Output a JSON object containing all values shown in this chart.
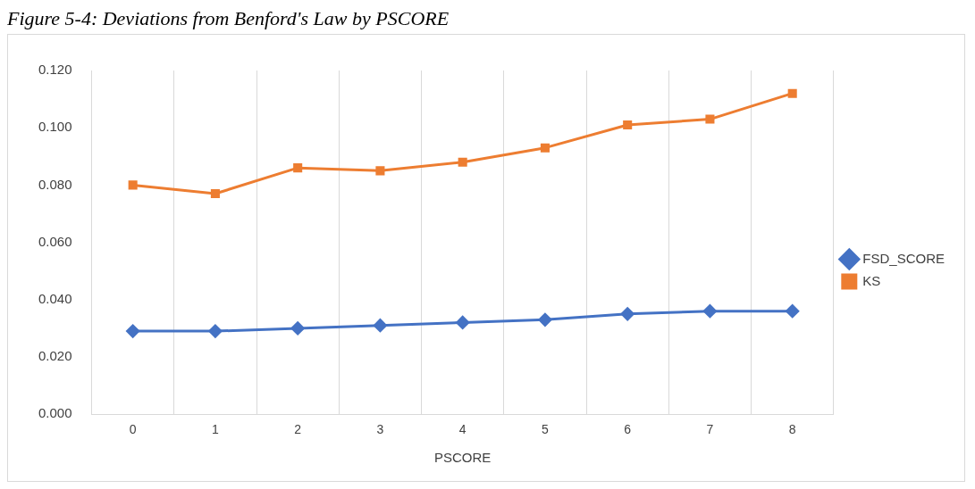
{
  "chart_data": {
    "type": "line",
    "title": "Figure 5-4: Deviations from Benford's Law by PSCORE",
    "xlabel": "PSCORE",
    "categories": [
      "0",
      "1",
      "2",
      "3",
      "4",
      "5",
      "6",
      "7",
      "8"
    ],
    "series": [
      {
        "name": "FSD_SCORE",
        "color": "#4472c4",
        "marker": "diamond",
        "values": [
          0.029,
          0.029,
          0.03,
          0.031,
          0.032,
          0.033,
          0.035,
          0.036,
          0.036
        ]
      },
      {
        "name": "KS",
        "color": "#ed7d31",
        "marker": "square",
        "values": [
          0.08,
          0.077,
          0.086,
          0.085,
          0.088,
          0.093,
          0.101,
          0.103,
          0.112
        ]
      }
    ],
    "ylim": [
      0,
      0.12
    ],
    "yticks": [
      {
        "value": 0,
        "label": "0.000"
      },
      {
        "value": 0.02,
        "label": "0.020"
      },
      {
        "value": 0.04,
        "label": "0.040"
      },
      {
        "value": 0.06,
        "label": "0.060"
      },
      {
        "value": 0.08,
        "label": "0.080"
      },
      {
        "value": 0.1,
        "label": "0.100"
      },
      {
        "value": 0.12,
        "label": "0.120"
      }
    ],
    "grid": "x",
    "legend": "right",
    "line_style": "solid"
  }
}
